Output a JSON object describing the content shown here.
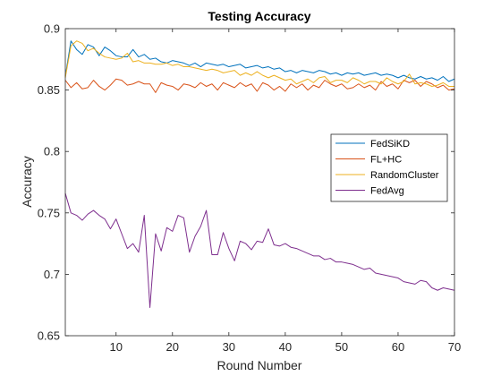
{
  "chart_data": {
    "type": "line",
    "title": "Testing Accuracy",
    "xlabel": "Round Number",
    "ylabel": "Accuracy",
    "xlim": [
      1,
      70
    ],
    "ylim": [
      0.65,
      0.9
    ],
    "xticks": [
      10,
      20,
      30,
      40,
      50,
      60,
      70
    ],
    "yticks": [
      0.65,
      0.7,
      0.75,
      0.8,
      0.85,
      0.9
    ],
    "yticklabels": [
      "0.65",
      "0.7",
      "0.75",
      "0.8",
      "0.85",
      "0.9"
    ],
    "grid": false,
    "legend_position": "right",
    "x": [
      1,
      2,
      3,
      4,
      5,
      6,
      7,
      8,
      9,
      10,
      11,
      12,
      13,
      14,
      15,
      16,
      17,
      18,
      19,
      20,
      21,
      22,
      23,
      24,
      25,
      26,
      27,
      28,
      29,
      30,
      31,
      32,
      33,
      34,
      35,
      36,
      37,
      38,
      39,
      40,
      41,
      42,
      43,
      44,
      45,
      46,
      47,
      48,
      49,
      50,
      51,
      52,
      53,
      54,
      55,
      56,
      57,
      58,
      59,
      60,
      61,
      62,
      63,
      64,
      65,
      66,
      67,
      68,
      69,
      70
    ],
    "series": [
      {
        "name": "FedSiKD",
        "color": "#0072bd",
        "values": [
          0.861,
          0.89,
          0.883,
          0.879,
          0.887,
          0.885,
          0.878,
          0.885,
          0.882,
          0.878,
          0.877,
          0.877,
          0.883,
          0.877,
          0.879,
          0.875,
          0.876,
          0.873,
          0.872,
          0.874,
          0.873,
          0.872,
          0.87,
          0.872,
          0.869,
          0.872,
          0.871,
          0.87,
          0.871,
          0.869,
          0.87,
          0.871,
          0.868,
          0.869,
          0.87,
          0.868,
          0.869,
          0.867,
          0.868,
          0.865,
          0.866,
          0.864,
          0.866,
          0.865,
          0.864,
          0.866,
          0.865,
          0.863,
          0.864,
          0.862,
          0.864,
          0.863,
          0.864,
          0.862,
          0.863,
          0.864,
          0.862,
          0.863,
          0.862,
          0.86,
          0.862,
          0.86,
          0.859,
          0.861,
          0.859,
          0.86,
          0.858,
          0.861,
          0.857,
          0.859
        ]
      },
      {
        "name": "FL+HC",
        "color": "#d95319",
        "values": [
          0.858,
          0.852,
          0.856,
          0.851,
          0.852,
          0.858,
          0.853,
          0.85,
          0.854,
          0.859,
          0.858,
          0.854,
          0.855,
          0.857,
          0.855,
          0.855,
          0.848,
          0.856,
          0.854,
          0.853,
          0.85,
          0.855,
          0.854,
          0.852,
          0.856,
          0.853,
          0.855,
          0.85,
          0.856,
          0.854,
          0.852,
          0.856,
          0.853,
          0.855,
          0.849,
          0.856,
          0.854,
          0.85,
          0.853,
          0.849,
          0.855,
          0.852,
          0.855,
          0.85,
          0.854,
          0.852,
          0.858,
          0.855,
          0.853,
          0.855,
          0.851,
          0.852,
          0.855,
          0.852,
          0.854,
          0.85,
          0.857,
          0.853,
          0.855,
          0.851,
          0.858,
          0.856,
          0.858,
          0.853,
          0.857,
          0.855,
          0.852,
          0.854,
          0.85,
          0.851
        ]
      },
      {
        "name": "RandomCluster",
        "color": "#edb120",
        "values": [
          0.86,
          0.886,
          0.89,
          0.888,
          0.882,
          0.884,
          0.88,
          0.877,
          0.876,
          0.875,
          0.876,
          0.88,
          0.873,
          0.874,
          0.872,
          0.872,
          0.871,
          0.871,
          0.872,
          0.87,
          0.871,
          0.869,
          0.869,
          0.868,
          0.867,
          0.866,
          0.867,
          0.866,
          0.864,
          0.865,
          0.866,
          0.862,
          0.864,
          0.862,
          0.865,
          0.862,
          0.86,
          0.862,
          0.86,
          0.858,
          0.859,
          0.855,
          0.857,
          0.859,
          0.856,
          0.86,
          0.861,
          0.856,
          0.858,
          0.858,
          0.856,
          0.86,
          0.858,
          0.855,
          0.857,
          0.857,
          0.855,
          0.86,
          0.857,
          0.855,
          0.857,
          0.863,
          0.855,
          0.856,
          0.855,
          0.853,
          0.854,
          0.856,
          0.853,
          0.853
        ]
      },
      {
        "name": "FedAvg",
        "color": "#7e2f8e",
        "values": [
          0.766,
          0.75,
          0.748,
          0.744,
          0.749,
          0.752,
          0.748,
          0.745,
          0.737,
          0.745,
          0.733,
          0.721,
          0.725,
          0.718,
          0.748,
          0.673,
          0.733,
          0.719,
          0.738,
          0.735,
          0.748,
          0.746,
          0.718,
          0.731,
          0.739,
          0.752,
          0.716,
          0.716,
          0.734,
          0.721,
          0.711,
          0.727,
          0.725,
          0.72,
          0.727,
          0.726,
          0.737,
          0.724,
          0.723,
          0.725,
          0.722,
          0.721,
          0.719,
          0.717,
          0.715,
          0.715,
          0.712,
          0.713,
          0.71,
          0.71,
          0.709,
          0.708,
          0.706,
          0.704,
          0.705,
          0.701,
          0.7,
          0.699,
          0.698,
          0.697,
          0.694,
          0.693,
          0.692,
          0.695,
          0.694,
          0.689,
          0.687,
          0.689,
          0.688,
          0.687
        ]
      }
    ]
  }
}
